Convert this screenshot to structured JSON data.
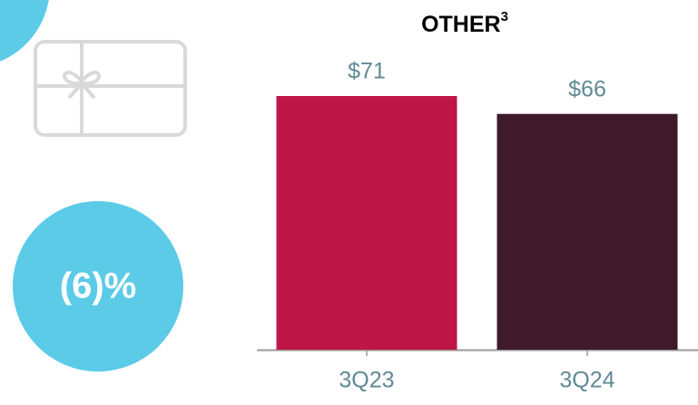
{
  "chart_data": {
    "type": "bar",
    "title": "OTHER",
    "title_superscript": "3",
    "categories": [
      "3Q23",
      "3Q24"
    ],
    "values": [
      71,
      66
    ],
    "value_labels": [
      "$71",
      "$66"
    ],
    "colors": [
      "#be1646",
      "#3f1a2b"
    ],
    "ylim": [
      0,
      80
    ]
  },
  "badge": "(6)%"
}
